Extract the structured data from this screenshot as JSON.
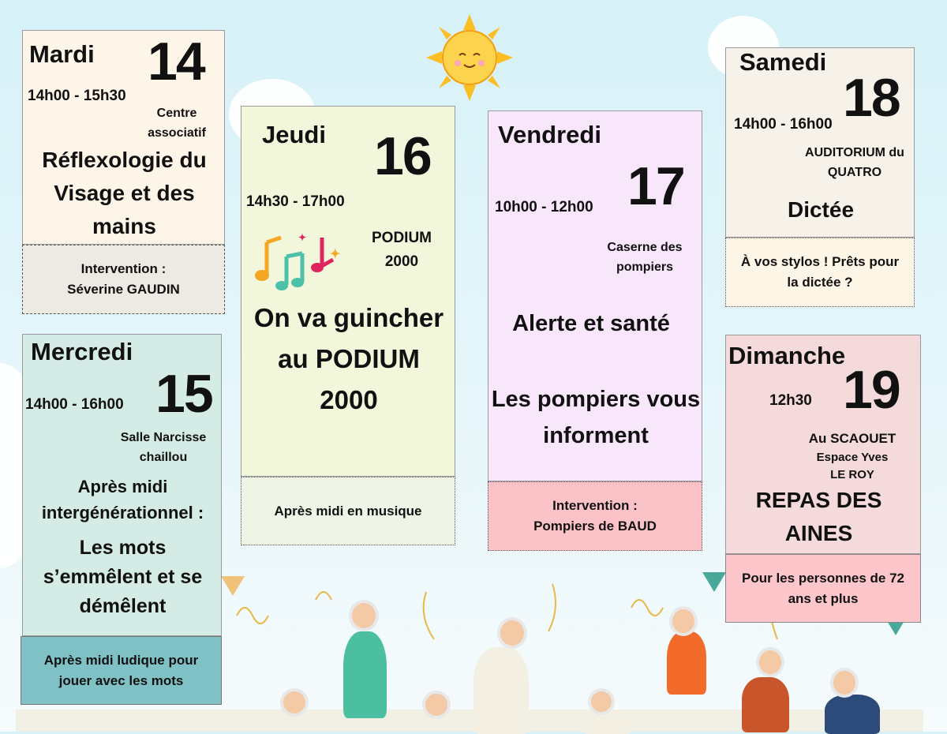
{
  "colors": {
    "background": "#d6f1f8",
    "sun": "#fbbf24",
    "mardi": "#fdf6e8",
    "mercredi": "#d4ebe6",
    "jeudi": "#f2f7dc",
    "vendredi": "#f8e6fb",
    "samedi": "#f6f2ea",
    "dimanche": "#f4dada"
  },
  "icons": [
    "sun-icon",
    "music-notes-icon",
    "cloud-icon",
    "confetti-icon"
  ],
  "events": [
    {
      "day": "Mardi",
      "date": "14",
      "time": "14h00 - 15h30",
      "place": "Centre associatif",
      "title": "Réflexologie du Visage et des mains",
      "footer": "Intervention : Séverine GAUDIN"
    },
    {
      "day": "Mercredi",
      "date": "15",
      "time": "14h00 - 16h00",
      "place": "Salle Narcisse chaillou",
      "title_intro": "Après midi intergénérationnel :",
      "title": "Les mots s’emmêlent et se démêlent",
      "footer": "Après midi ludique pour jouer avec les mots"
    },
    {
      "day": "Jeudi",
      "date": "16",
      "time": "14h30 - 17h00",
      "place": "PODIUM 2000",
      "title": "On va guincher au PODIUM 2000",
      "footer": "Après midi en musique"
    },
    {
      "day": "Vendredi",
      "date": "17",
      "time": "10h00 - 12h00",
      "place": "Caserne des pompiers",
      "title": "Alerte et santé",
      "subtitle": "Les pompiers vous informent",
      "footer": "Intervention : Pompiers de BAUD"
    },
    {
      "day": "Samedi",
      "date": "18",
      "time": "14h00 - 16h00",
      "place": "AUDITORIUM du QUATRO",
      "title": "Dictée",
      "footer": "À vos stylos ! Prêts pour la dictée ?"
    },
    {
      "day": "Dimanche",
      "date": "19",
      "time": "12h30",
      "place": "Au SCAOUET",
      "place_detail": "Espace Yves LE ROY",
      "title": "REPAS DES AINES",
      "footer": "Pour les personnes de 72 ans et plus"
    }
  ]
}
